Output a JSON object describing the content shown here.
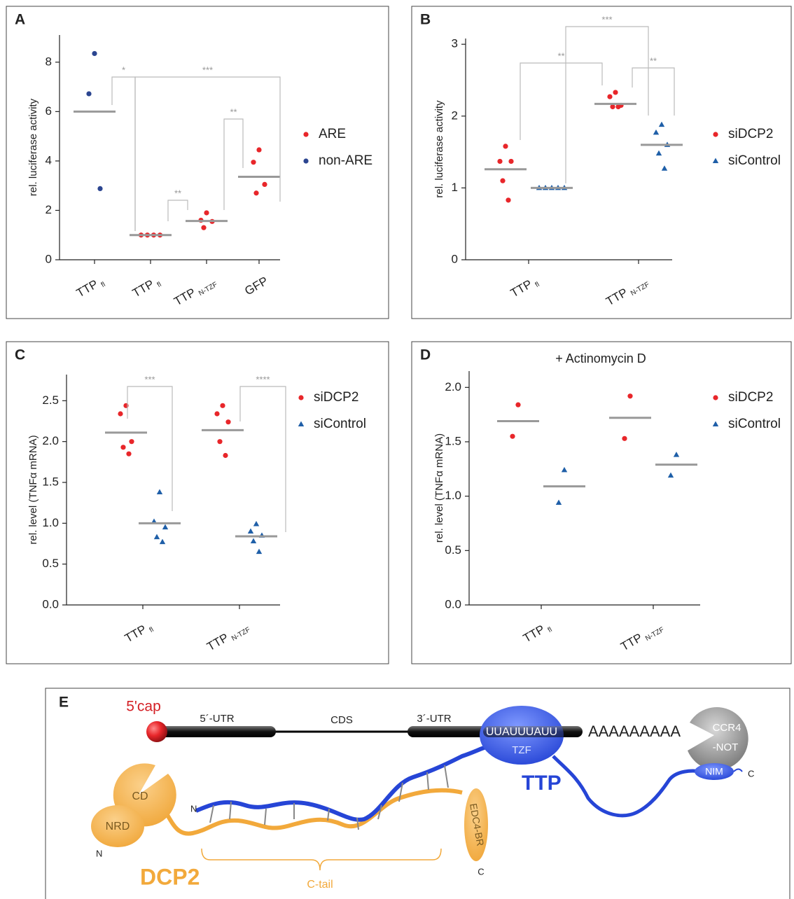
{
  "chart_data": [
    {
      "type": "scatter",
      "panel": "A",
      "ylabel": "rel. luciferase activity",
      "categories": [
        [
          "TTP",
          "fl"
        ],
        [
          "TTP",
          "fl"
        ],
        [
          "TTP",
          "N-TZF"
        ],
        [
          "GFP"
        ]
      ],
      "ylim": [
        0,
        9.1
      ],
      "yticks": [
        0,
        2,
        4,
        6,
        8
      ],
      "series": [
        {
          "name": "ARE",
          "color": "#e8262a",
          "marker": "circle",
          "values": [
            null,
            [
              1,
              1,
              1,
              1
            ],
            [
              1.9,
              1.6,
              1.55,
              1.3
            ],
            [
              4.45,
              3.95,
              3.05,
              2.7
            ]
          ],
          "means": [
            null,
            1,
            1.57,
            3.36
          ]
        },
        {
          "name": "non-ARE",
          "color": "#2b4590",
          "marker": "circle",
          "values": [
            [
              8.35,
              6.72,
              2.88
            ],
            null,
            null,
            null
          ],
          "means": [
            6,
            null,
            null,
            null
          ]
        }
      ],
      "significance": [
        "*",
        "***",
        "**",
        "**"
      ]
    },
    {
      "type": "scatter",
      "panel": "B",
      "ylabel": "rel. luciferase activity",
      "categories": [
        [
          "TTP",
          "fl"
        ],
        [
          "TTP",
          "N-TZF"
        ]
      ],
      "ylim": [
        0,
        3.08
      ],
      "yticks": [
        0,
        1,
        2,
        3
      ],
      "series": [
        {
          "name": "siDCP2",
          "color": "#e8262a",
          "marker": "circle",
          "values": [
            [
              1.58,
              1.37,
              1.37,
              1.1,
              0.83
            ],
            [
              2.33,
              2.27,
              2.15,
              2.13,
              2.13
            ]
          ],
          "means": [
            1.26,
            2.17
          ]
        },
        {
          "name": "siControl",
          "color": "#1f5fa8",
          "marker": "triangle",
          "values": [
            [
              1,
              1,
              1,
              1,
              1
            ],
            [
              1.88,
              1.77,
              1.6,
              1.48,
              1.27
            ]
          ],
          "means": [
            1,
            1.6
          ]
        }
      ],
      "significance": [
        "**",
        "***",
        "**"
      ]
    },
    {
      "type": "scatter",
      "panel": "C",
      "ylabel": "rel. level (TNFα mRNA)",
      "categories": [
        [
          "TTP",
          "fl"
        ],
        [
          "TTP",
          "N-TZF"
        ]
      ],
      "ylim": [
        0,
        2.82
      ],
      "yticks": [
        {
          "value": 0,
          "label": "0.0"
        },
        0.5,
        {
          "value": 1,
          "label": "1.0"
        },
        1.5,
        {
          "value": 2,
          "label": "2.0"
        },
        2.5
      ],
      "series": [
        {
          "name": "siDCP2",
          "color": "#e8262a",
          "marker": "circle",
          "values": [
            [
              2.44,
              2.34,
              2.0,
              1.93,
              1.85
            ],
            [
              2.44,
              2.34,
              2.24,
              2.0,
              1.83
            ]
          ],
          "means": [
            2.11,
            2.14
          ]
        },
        {
          "name": "siControl",
          "color": "#1f5fa8",
          "marker": "triangle",
          "values": [
            [
              1.38,
              1.02,
              0.95,
              0.83,
              0.77
            ],
            [
              0.99,
              0.9,
              0.85,
              0.78,
              0.65
            ]
          ],
          "means": [
            1,
            0.84
          ]
        }
      ],
      "significance": [
        "***",
        "****"
      ]
    },
    {
      "type": "scatter",
      "panel": "D",
      "title": "+ Actinomycin D",
      "ylabel": "rel. level (TNFα mRNA)",
      "categories": [
        [
          "TTP",
          "fl"
        ],
        [
          "TTP",
          "N-TZF"
        ]
      ],
      "ylim": [
        0,
        2.15
      ],
      "yticks": [
        {
          "value": 0,
          "label": "0.0"
        },
        0.5,
        {
          "value": 1,
          "label": "1.0"
        },
        1.5,
        {
          "value": 2,
          "label": "2.0"
        }
      ],
      "series": [
        {
          "name": "siDCP2",
          "color": "#e8262a",
          "marker": "circle",
          "values": [
            [
              1.84,
              1.55
            ],
            [
              1.92,
              1.53
            ]
          ],
          "means": [
            1.69,
            1.72
          ]
        },
        {
          "name": "siControl",
          "color": "#1f5fa8",
          "marker": "triangle",
          "values": [
            [
              1.24,
              0.94
            ],
            [
              1.38,
              1.19
            ]
          ],
          "means": [
            1.09,
            1.29
          ]
        }
      ],
      "significance": []
    }
  ],
  "diagram": {
    "panel": "E",
    "cap": "5'cap",
    "utr5": "5´-UTR",
    "cds": "CDS",
    "utr3": "3´-UTR",
    "are": "UUAUUUAUU",
    "polya": "AAAAAAAAA",
    "tzf": "TZF",
    "ccr4": "CCR4",
    "not": "-NOT",
    "nim": "NIM",
    "ttp_c": "C",
    "ttp": "TTP",
    "ttp_n": "N",
    "cd": "CD",
    "nrd": "NRD",
    "dcp2_n": "N",
    "dcp2": "DCP2",
    "ctail": "C-tail",
    "edc4": "EDC4-BR",
    "dcp2_c": "C"
  }
}
